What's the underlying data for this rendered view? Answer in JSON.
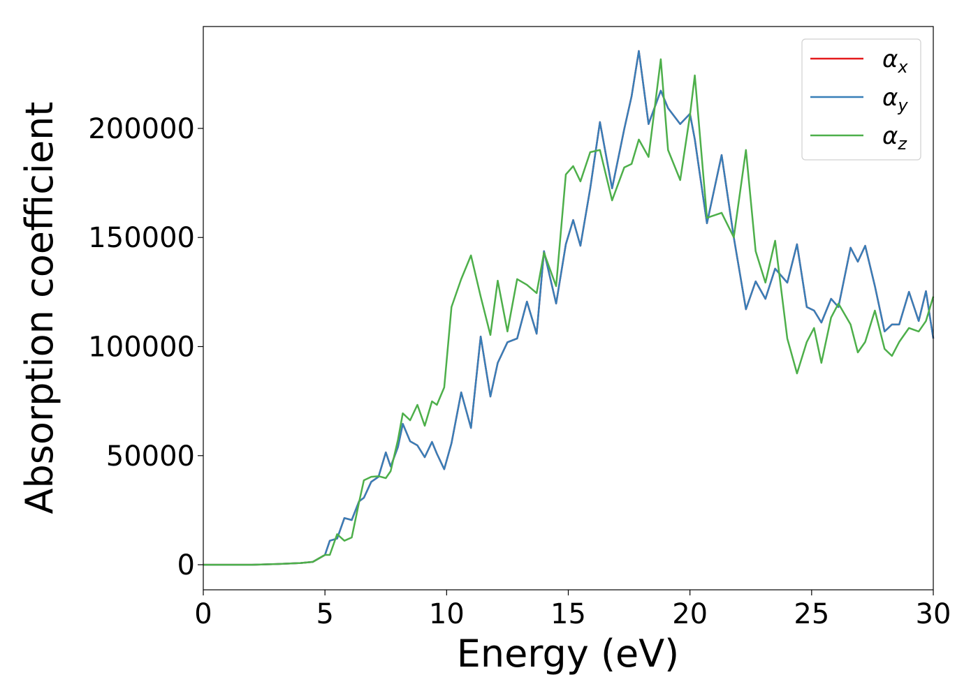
{
  "chart_data": {
    "type": "line",
    "xlabel": "Energy (eV)",
    "ylabel": "Absorption coefficient",
    "x": [
      0,
      1,
      2,
      3,
      4,
      4.5,
      5,
      5.2,
      5.5,
      5.8,
      6.1,
      6.4,
      6.6,
      6.9,
      7.2,
      7.5,
      7.7,
      8.0,
      8.2,
      8.5,
      8.8,
      9.1,
      9.4,
      9.6,
      9.9,
      10.2,
      10.6,
      11.0,
      11.4,
      11.8,
      12.1,
      12.5,
      12.9,
      13.3,
      13.7,
      14.0,
      14.5,
      14.9,
      15.2,
      15.5,
      15.9,
      16.3,
      16.8,
      17.3,
      17.6,
      17.9,
      18.3,
      18.8,
      19.1,
      19.6,
      20.0,
      20.2,
      20.7,
      21.3,
      21.8,
      22.3,
      22.7,
      23.1,
      23.5,
      24.0,
      24.4,
      24.8,
      25.1,
      25.4,
      25.8,
      26.1,
      26.6,
      26.9,
      27.2,
      27.6,
      28.0,
      28.3,
      28.6,
      29.0,
      29.4,
      29.7,
      30
    ],
    "series": [
      {
        "name": "αx",
        "color": "#e41a1c",
        "values": [
          0,
          0,
          0,
          300,
          800,
          1300,
          4500,
          11000,
          12000,
          21400,
          20500,
          29000,
          30700,
          38000,
          40300,
          51500,
          45000,
          54000,
          64600,
          56600,
          54700,
          49300,
          56300,
          50900,
          43800,
          55700,
          79000,
          62700,
          104600,
          77100,
          92500,
          102000,
          103700,
          120600,
          105900,
          143700,
          119700,
          146900,
          158000,
          146200,
          172500,
          202900,
          172500,
          199700,
          214700,
          235500,
          202000,
          217300,
          209300,
          202000,
          206700,
          195000,
          156500,
          187800,
          150100,
          117100,
          129900,
          121900,
          135700,
          129300,
          146900,
          118100,
          116500,
          111000,
          121900,
          118100,
          145300,
          138900,
          146200,
          127700,
          106900,
          110100,
          110100,
          125100,
          111700,
          125400,
          103700
        ]
      },
      {
        "name": "αy",
        "color": "#377eb8",
        "values": [
          0,
          0,
          0,
          300,
          800,
          1300,
          4500,
          11000,
          12000,
          21400,
          20500,
          29000,
          30700,
          38000,
          40300,
          51500,
          45000,
          54000,
          64600,
          56600,
          54700,
          49300,
          56300,
          50900,
          43800,
          55700,
          79000,
          62700,
          104600,
          77100,
          92500,
          102000,
          103700,
          120600,
          105900,
          143700,
          119700,
          146900,
          158000,
          146200,
          172500,
          202900,
          172500,
          199700,
          214700,
          235500,
          202000,
          217300,
          209300,
          202000,
          206700,
          195000,
          156500,
          187800,
          150100,
          117100,
          129900,
          121900,
          135700,
          129300,
          146900,
          118100,
          116500,
          111000,
          121900,
          118100,
          145300,
          138900,
          146200,
          127700,
          106900,
          110100,
          110100,
          125100,
          111700,
          125400,
          103700
        ]
      },
      {
        "name": "αz",
        "color": "#4daf4a",
        "values": [
          0,
          0,
          0,
          300,
          800,
          1300,
          4500,
          4500,
          14000,
          11000,
          12500,
          28500,
          38700,
          40300,
          40600,
          39700,
          42900,
          57300,
          69400,
          66200,
          73300,
          63700,
          74900,
          73300,
          81300,
          118100,
          130900,
          141800,
          122900,
          105300,
          130200,
          106900,
          130900,
          128300,
          124500,
          143000,
          127700,
          178900,
          182700,
          175700,
          189100,
          190100,
          167000,
          182100,
          183700,
          194900,
          186900,
          231700,
          190100,
          176300,
          206100,
          224300,
          159000,
          161300,
          150100,
          190100,
          143700,
          129300,
          148500,
          103700,
          87700,
          102100,
          108500,
          92500,
          113300,
          119700,
          110100,
          97300,
          102100,
          116500,
          98900,
          95700,
          102100,
          108500,
          106900,
          111700,
          122900
        ]
      }
    ],
    "xlim": [
      0,
      30
    ],
    "xticks": [
      0,
      5,
      10,
      15,
      20,
      25,
      30
    ],
    "ylim": [
      -11500,
      246700
    ],
    "yticks": [
      0,
      50000,
      100000,
      150000,
      200000
    ],
    "legend": "upper right",
    "grid": false
  }
}
